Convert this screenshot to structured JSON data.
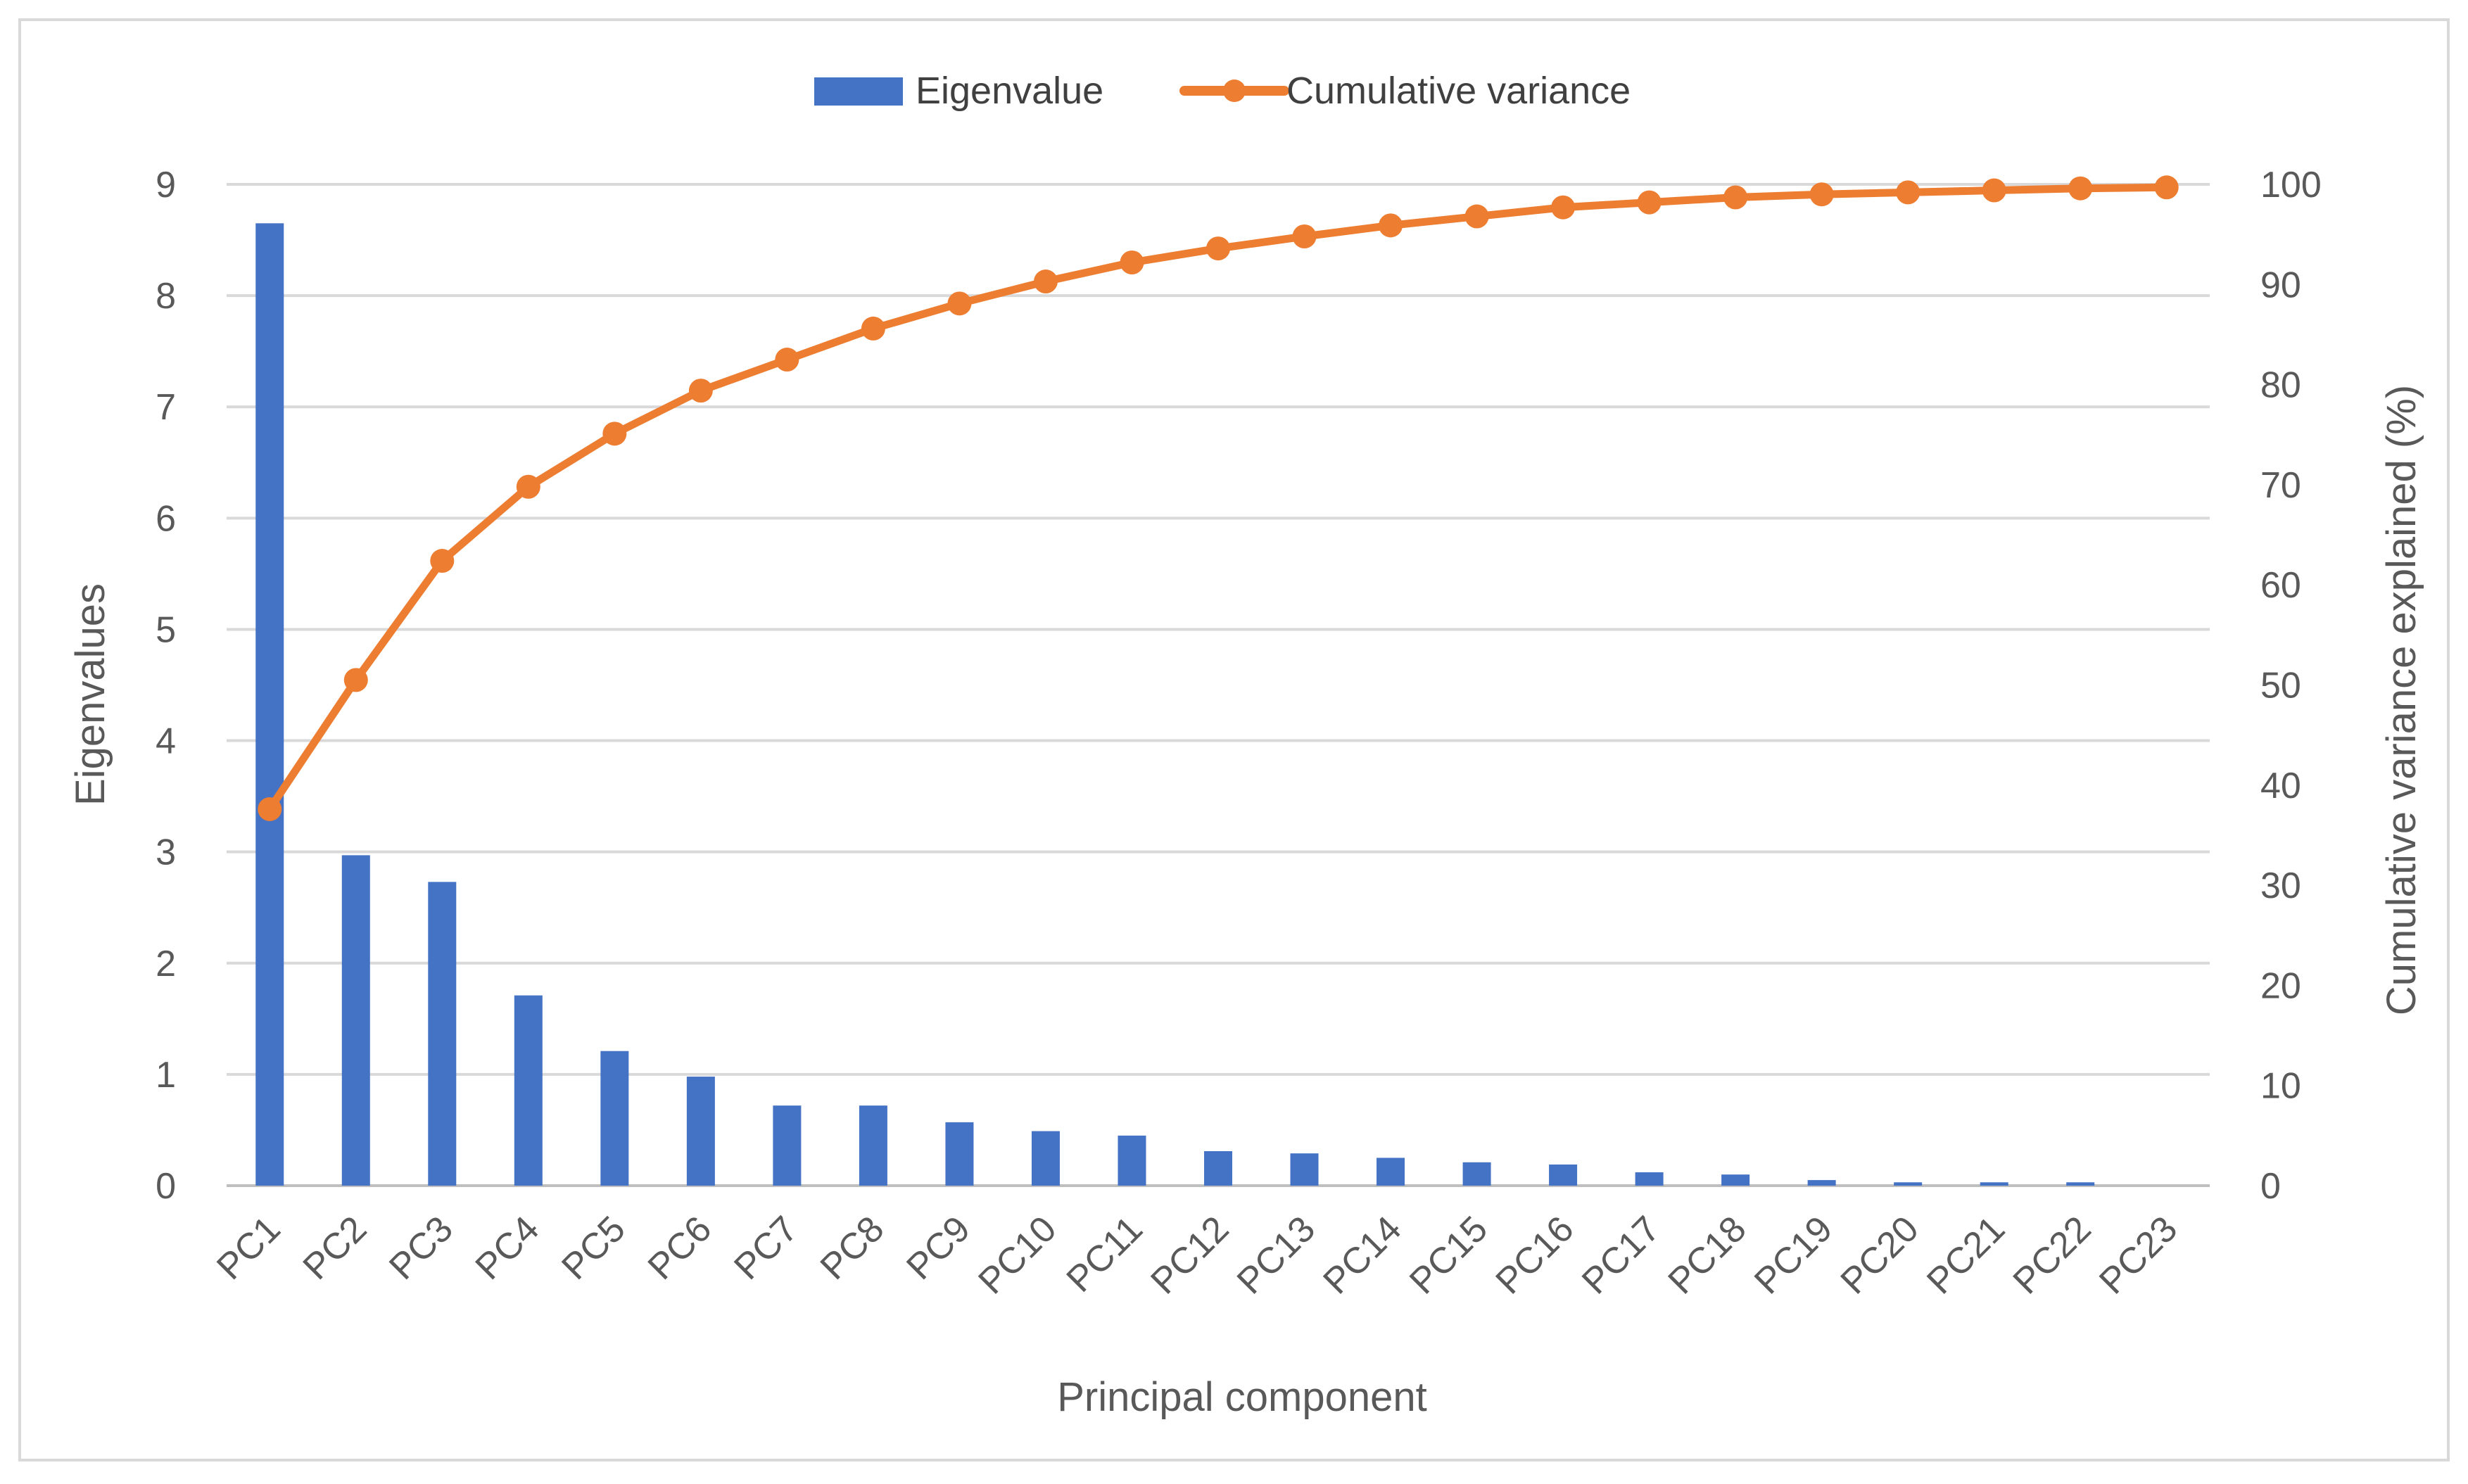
{
  "chart_data": {
    "type": "bar",
    "categories": [
      "PC1",
      "PC2",
      "PC3",
      "PC4",
      "PC5",
      "PC6",
      "PC7",
      "PC8",
      "PC9",
      "PC10",
      "PC11",
      "PC12",
      "PC13",
      "PC14",
      "PC15",
      "PC16",
      "PC17",
      "PC18",
      "PC19",
      "PC20",
      "PC21",
      "PC22",
      "PC23"
    ],
    "series": [
      {
        "name": "Eigenvalue",
        "type": "bar",
        "axis": "left",
        "color": "#4472C4",
        "values": [
          8.65,
          2.97,
          2.73,
          1.71,
          1.21,
          0.98,
          0.72,
          0.72,
          0.57,
          0.49,
          0.45,
          0.31,
          0.29,
          0.25,
          0.21,
          0.19,
          0.12,
          0.1,
          0.05,
          0.03,
          0.03,
          0.03,
          0.0
        ]
      },
      {
        "name": "Cumulative variance",
        "type": "line",
        "axis": "right",
        "color": "#ED7D31",
        "markers": true,
        "values": [
          37.6,
          50.5,
          62.4,
          69.8,
          75.1,
          79.4,
          82.5,
          85.6,
          88.1,
          90.3,
          92.2,
          93.6,
          94.8,
          95.9,
          96.8,
          97.7,
          98.2,
          98.7,
          99.0,
          99.2,
          99.4,
          99.6,
          99.7
        ]
      }
    ],
    "xlabel": "Principal component",
    "ylabel": "Eigenvalues",
    "ylabel_right": "Cumulative variance explained (%)",
    "ylim": [
      0,
      9
    ],
    "ylim_right": [
      0,
      100
    ],
    "yticks": [
      "0",
      "1",
      "2",
      "3",
      "4",
      "5",
      "6",
      "7",
      "8",
      "9"
    ],
    "yticks_right": [
      "0",
      "10",
      "20",
      "30",
      "40",
      "50",
      "60",
      "70",
      "80",
      "90",
      "100"
    ],
    "grid": true,
    "legend_position": "top-center"
  }
}
